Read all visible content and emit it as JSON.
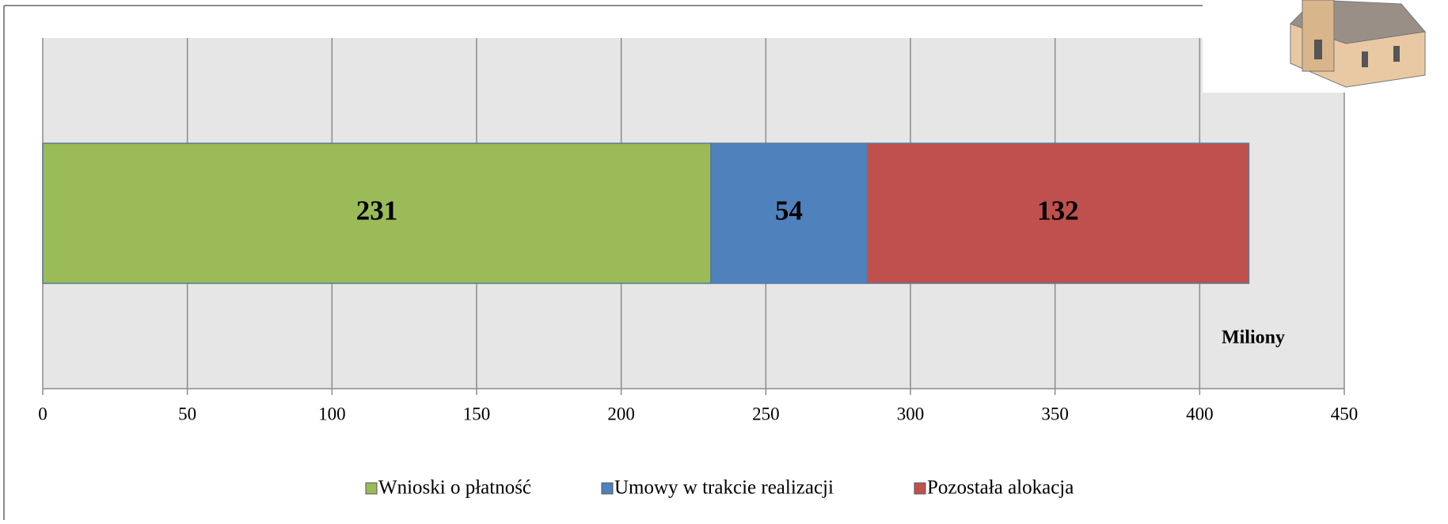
{
  "chart_data": {
    "type": "stacked-barh",
    "categories": [
      null
    ],
    "series": [
      {
        "name": "Wnioski o płatność",
        "color": "#9bbb59",
        "values": [
          231
        ]
      },
      {
        "name": "Umowy w trakcie realizacji",
        "color": "#4f81bd",
        "values": [
          54
        ]
      },
      {
        "name": "Pozostała alokacja",
        "color": "#c0504d",
        "values": [
          132
        ]
      }
    ],
    "xlim": [
      0,
      450
    ],
    "xticks": [
      0,
      50,
      100,
      150,
      200,
      250,
      300,
      350,
      400,
      450
    ],
    "grid": true,
    "annotation": "Miliony",
    "legend": "bottom"
  }
}
